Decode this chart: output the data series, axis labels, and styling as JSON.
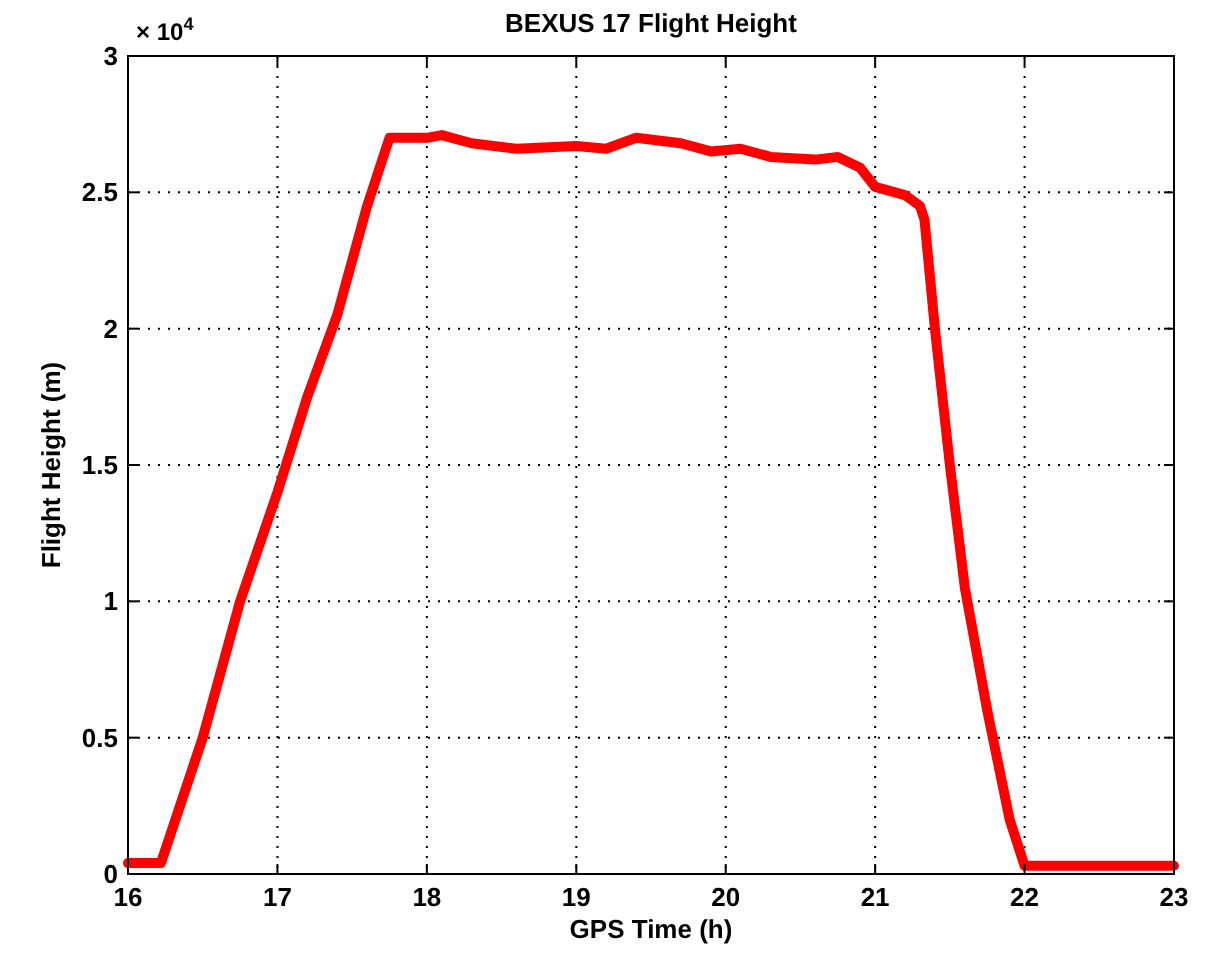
{
  "chart_data": {
    "type": "line",
    "title": "BEXUS 17 Flight Height",
    "xlabel": "GPS Time (h)",
    "ylabel": "Flight Height (m)",
    "annotations": [
      "× 10$^{4}$"
    ],
    "x": [
      16,
      16.22,
      16.5,
      16.75,
      17,
      17.2,
      17.4,
      17.6,
      17.75,
      18,
      18.1,
      18.3,
      18.6,
      19,
      19.2,
      19.4,
      19.7,
      19.9,
      20.1,
      20.3,
      20.6,
      20.75,
      20.9,
      21,
      21.2,
      21.3,
      21.33,
      21.4,
      21.5,
      21.6,
      21.75,
      21.9,
      22,
      22.5,
      23
    ],
    "series": [
      {
        "color": "#ff0000",
        "values": [
          0.04,
          0.04,
          0.5,
          1.0,
          1.4,
          1.75,
          2.05,
          2.45,
          2.7,
          2.7,
          2.71,
          2.68,
          2.66,
          2.67,
          2.66,
          2.7,
          2.68,
          2.65,
          2.66,
          2.63,
          2.62,
          2.63,
          2.59,
          2.52,
          2.49,
          2.45,
          2.4,
          2.0,
          1.5,
          1.05,
          0.6,
          0.2,
          0.03,
          0.03,
          0.03
        ]
      }
    ],
    "xlim": [
      16,
      23
    ],
    "xticks": [
      16,
      17,
      18,
      19,
      20,
      21,
      22,
      23
    ],
    "ylim": [
      0,
      3
    ],
    "yticks": [
      0,
      0.5,
      1,
      1.5,
      2,
      2.5,
      3
    ],
    "grid": true,
    "line_style": "solid",
    "marker": "none"
  }
}
